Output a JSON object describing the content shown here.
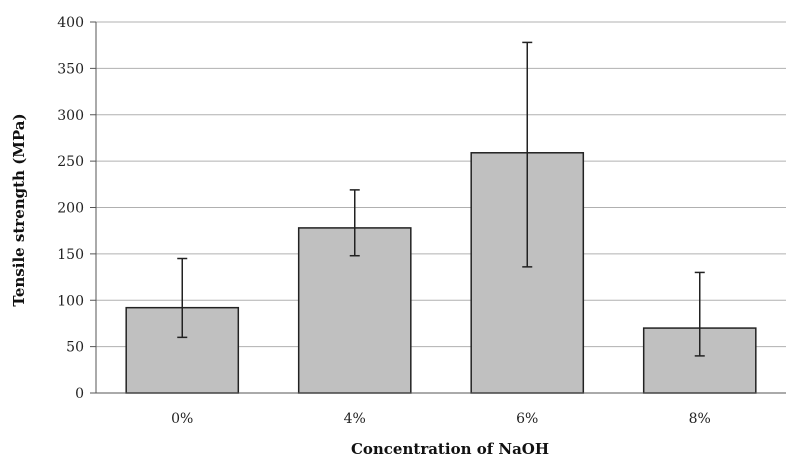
{
  "chart_data": {
    "type": "bar",
    "categories": [
      "0%",
      "4%",
      "6%",
      "8%"
    ],
    "values": [
      92,
      178,
      259,
      70
    ],
    "error_low": [
      60,
      148,
      136,
      40
    ],
    "error_high": [
      145,
      219,
      378,
      130
    ],
    "xlabel": "Concentration of NaOH",
    "ylabel": "Tensile strength (MPa)",
    "ylim": [
      0,
      400
    ],
    "yticks": [
      0,
      50,
      100,
      150,
      200,
      250,
      300,
      350,
      400
    ],
    "grid": true,
    "legend": "none",
    "colors": {
      "bar_fill": "#c0c0c0",
      "bar_stroke": "#222222",
      "grid": "#b0b0b0",
      "error_bar": "#222222"
    }
  }
}
